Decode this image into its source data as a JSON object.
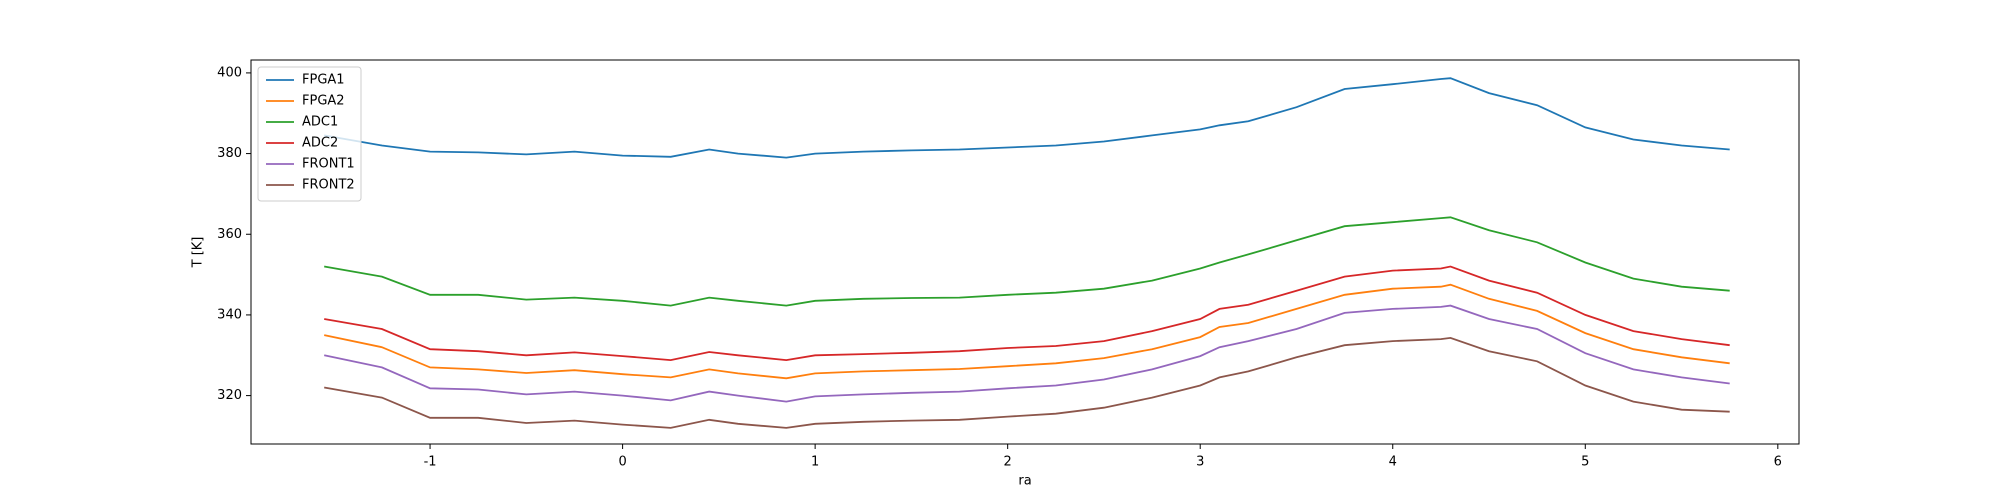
{
  "chart_data": {
    "type": "line",
    "xlabel": "ra",
    "ylabel": "T [K]",
    "x": [
      -1.55,
      -1.25,
      -1,
      -0.75,
      -0.5,
      -0.25,
      0,
      0.25,
      0.45,
      0.6,
      0.85,
      1,
      1.25,
      1.5,
      1.75,
      2,
      2.25,
      2.5,
      2.75,
      3,
      3.1,
      3.25,
      3.5,
      3.75,
      4,
      4.25,
      4.3,
      4.5,
      4.75,
      5,
      5.25,
      5.5,
      5.75
    ],
    "series": [
      {
        "name": "FPGA1",
        "color": "#1f77b4",
        "values": [
          384.5,
          382,
          380.5,
          380.3,
          379.8,
          380.5,
          379.5,
          379.2,
          381,
          380,
          379,
          380,
          380.5,
          380.8,
          381,
          381.5,
          382,
          383,
          384.5,
          386,
          387,
          388,
          391.5,
          396,
          397.2,
          398.5,
          398.7,
          395,
          392,
          386.5,
          383.5,
          382,
          381
        ]
      },
      {
        "name": "FPGA2",
        "color": "#ff7f0e",
        "values": [
          335,
          332,
          327,
          326.5,
          325.6,
          326.3,
          325.3,
          324.5,
          326.5,
          325.5,
          324.3,
          325.5,
          326,
          326.3,
          326.6,
          327.3,
          328,
          329.3,
          331.5,
          334.5,
          337,
          338,
          341.5,
          345,
          346.5,
          347,
          347.5,
          344,
          341,
          335.5,
          331.5,
          329.5,
          328
        ]
      },
      {
        "name": "ADC1",
        "color": "#2ca02c",
        "values": [
          352,
          349.5,
          345,
          345,
          343.8,
          344.3,
          343.5,
          342.3,
          344.3,
          343.5,
          342.3,
          343.5,
          344,
          344.2,
          344.3,
          345,
          345.5,
          346.5,
          348.5,
          351.5,
          353,
          355,
          358.5,
          362,
          363,
          364,
          364.2,
          361,
          358,
          353,
          349,
          347,
          346
        ]
      },
      {
        "name": "ADC2",
        "color": "#d62728",
        "values": [
          339,
          336.5,
          331.5,
          331,
          330,
          330.7,
          329.8,
          328.8,
          330.8,
          330,
          328.8,
          330,
          330.3,
          330.6,
          331,
          331.8,
          332.3,
          333.5,
          336,
          339,
          341.5,
          342.5,
          346,
          349.5,
          351,
          351.5,
          352,
          348.5,
          345.5,
          340,
          336,
          334,
          332.5
        ]
      },
      {
        "name": "FRONT1",
        "color": "#9467bd",
        "values": [
          330,
          327,
          321.8,
          321.5,
          320.3,
          321,
          320,
          318.8,
          321,
          320,
          318.5,
          319.8,
          320.3,
          320.7,
          321,
          321.8,
          322.5,
          324,
          326.5,
          329.8,
          332,
          333.5,
          336.5,
          340.5,
          341.5,
          342,
          342.3,
          339,
          336.5,
          330.5,
          326.5,
          324.5,
          323
        ]
      },
      {
        "name": "FRONT2",
        "color": "#8c564b",
        "values": [
          322,
          319.5,
          314.5,
          314.5,
          313.2,
          313.8,
          312.8,
          312,
          314,
          313,
          312,
          313,
          313.5,
          313.8,
          314,
          314.8,
          315.5,
          317,
          319.5,
          322.5,
          324.5,
          326,
          329.5,
          332.5,
          333.5,
          334,
          334.3,
          331,
          328.5,
          322.5,
          318.5,
          316.5,
          316
        ]
      }
    ],
    "xlim": [
      -1.93,
      6.11
    ],
    "xticks": [
      -1,
      0,
      1,
      2,
      3,
      4,
      5,
      6
    ],
    "ylim": [
      308,
      403.2
    ],
    "yticks": [
      320,
      340,
      360,
      380,
      400
    ],
    "legend": "upper left"
  }
}
